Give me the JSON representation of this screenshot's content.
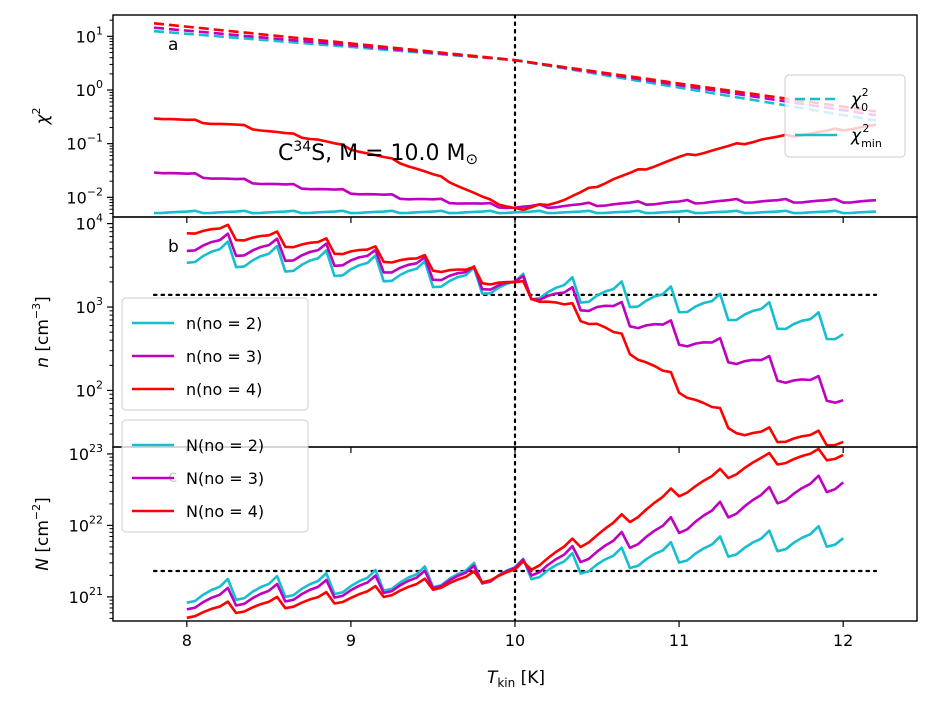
{
  "figure": {
    "xlabel_main": "T",
    "xlabel_sub": "kin",
    "xlabel_unit": " [K]",
    "annotation": {
      "prefix": "C",
      "sup": "34",
      "middle": "S,  M = 10.0 M",
      "sub": "⊙"
    }
  },
  "chart_data": [
    {
      "panel": "a",
      "type": "line",
      "yscale": "log",
      "ylabel": "χ²",
      "ylabel_main": "χ",
      "ylabel_sup": "2",
      "xlim": [
        7.55,
        12.45
      ],
      "ylim": [
        0.0043,
        25
      ],
      "yticks": [
        {
          "value": 0.01,
          "base": "10",
          "exp": "−2"
        },
        {
          "value": 0.1,
          "base": "10",
          "exp": "−1"
        },
        {
          "value": 1,
          "base": "10",
          "exp": "0"
        },
        {
          "value": 10,
          "base": "10",
          "exp": "1"
        }
      ],
      "vline_x": 10,
      "legend": {
        "position": "right",
        "entries": [
          {
            "style": "dashed",
            "color": "#17becf",
            "main": "χ",
            "sub": "0",
            "sup": "2"
          },
          {
            "style": "solid",
            "color": "#17becf",
            "main": "χ",
            "sub": "min",
            "sup": "2"
          }
        ]
      },
      "series": [
        {
          "color": "#17becf",
          "style": "dashed",
          "x": [
            7.8,
            10,
            12.2
          ],
          "values": [
            12.5,
            3.6,
            0.27
          ],
          "zigzag": 0
        },
        {
          "color": "#bf00bf",
          "style": "dashed",
          "x": [
            7.8,
            10,
            12.2
          ],
          "values": [
            14.5,
            3.6,
            0.34
          ],
          "zigzag": 0
        },
        {
          "color": "#ff0000",
          "style": "dashed",
          "x": [
            7.8,
            10,
            12.2
          ],
          "values": [
            17.5,
            3.6,
            0.4
          ],
          "zigzag": 0
        },
        {
          "color": "#17becf",
          "style": "solid",
          "x": [
            7.8,
            12.2
          ],
          "values": [
            0.0053,
            0.0053
          ],
          "zigzag": 0.05
        },
        {
          "color": "#bf00bf",
          "style": "solid",
          "x": [
            7.8,
            8.5,
            9.3,
            10,
            10.6,
            11.3,
            12.2
          ],
          "values": [
            0.031,
            0.018,
            0.01,
            0.0065,
            0.0075,
            0.0085,
            0.0085
          ],
          "zigzag": 0.08
        },
        {
          "color": "#ff0000",
          "style": "solid",
          "x": [
            7.8,
            8.3,
            8.8,
            9.3,
            9.6,
            9.85,
            10.05,
            10.3,
            10.6,
            11,
            11.5,
            12.2
          ],
          "values": [
            0.31,
            0.22,
            0.12,
            0.045,
            0.02,
            0.0085,
            0.0058,
            0.009,
            0.022,
            0.055,
            0.12,
            0.22
          ],
          "zigzag": 0.06
        }
      ]
    },
    {
      "panel": "b",
      "type": "line",
      "yscale": "log",
      "ylabel": "n [cm⁻³]",
      "ylabel_main": "n",
      "ylabel_unit": " [cm",
      "ylabel_sup": "−3",
      "ylabel_close": "]",
      "xlim": [
        7.55,
        12.45
      ],
      "ylim": [
        21,
        12000
      ],
      "yticks": [
        {
          "value": 100,
          "base": "10",
          "exp": "2"
        },
        {
          "value": 1000,
          "base": "10",
          "exp": "3"
        },
        {
          "value": 10000,
          "base": "10",
          "exp": "4"
        }
      ],
      "vline_x": 10,
      "hline": {
        "value": 1400,
        "x": [
          7.8,
          12.2
        ]
      },
      "legend": {
        "position": "middle-left",
        "entries": [
          {
            "color": "#17becf",
            "label": "n(no = 2)"
          },
          {
            "color": "#bf00bf",
            "label": "n(no = 3)"
          },
          {
            "color": "#ff0000",
            "label": "n(no = 4)"
          }
        ]
      },
      "series": [
        {
          "name": "n(no = 2)",
          "color": "#17becf",
          "x": [
            8,
            9,
            9.5,
            10,
            10.5,
            11,
            11.5,
            12
          ],
          "values": [
            4500,
            3000,
            2300,
            1700,
            1450,
            1150,
            800,
            500
          ],
          "zigzag": 0.35
        },
        {
          "name": "n(no = 3)",
          "color": "#bf00bf",
          "x": [
            8,
            9,
            9.5,
            10,
            10.5,
            11,
            11.5,
            12
          ],
          "values": [
            6000,
            3800,
            2700,
            1750,
            1050,
            450,
            200,
            80
          ],
          "zigzag": 0.3
        },
        {
          "name": "n(no = 4)",
          "color": "#ff0000",
          "x": [
            8,
            9,
            9.5,
            10,
            10.5,
            11,
            11.4,
            12
          ],
          "values": [
            9000,
            4800,
            3200,
            1800,
            650,
            110,
            30,
            25
          ],
          "zigzag": 0.2
        }
      ]
    },
    {
      "panel": "c",
      "type": "line",
      "yscale": "log",
      "ylabel": "N [cm⁻²]",
      "ylabel_main": "N",
      "ylabel_unit": " [cm",
      "ylabel_sup": "−2",
      "ylabel_close": "]",
      "xlim": [
        7.55,
        12.45
      ],
      "ylim": [
        4.6e+20,
        1.25e+23
      ],
      "yticks": [
        {
          "value": 1e+21,
          "base": "10",
          "exp": "21"
        },
        {
          "value": 1e+22,
          "base": "10",
          "exp": "22"
        },
        {
          "value": 1e+23,
          "base": "10",
          "exp": "23"
        }
      ],
      "vline_x": 10,
      "hline": {
        "value": 2.3e+21,
        "x": [
          7.8,
          12.2
        ]
      },
      "legend": {
        "position": "top-left",
        "entries": [
          {
            "color": "#17becf",
            "label": "N(no = 2)"
          },
          {
            "color": "#bf00bf",
            "label": "N(no = 3)"
          },
          {
            "color": "#ff0000",
            "label": "N(no = 4)"
          }
        ]
      },
      "series": [
        {
          "name": "N(no = 2)",
          "color": "#17becf",
          "x": [
            8,
            9,
            10,
            10.5,
            11,
            11.5,
            12
          ],
          "values": [
            1.1e+21,
            1.5e+21,
            2.2e+21,
            3e+21,
            4e+21,
            5.5e+21,
            7e+21
          ],
          "zigzag": 0.35
        },
        {
          "name": "N(no = 3)",
          "color": "#bf00bf",
          "x": [
            8,
            9,
            10,
            10.5,
            11,
            11.5,
            12
          ],
          "values": [
            8.5e+20,
            1.3e+21,
            2.2e+21,
            4.5e+21,
            1e+22,
            2.3e+22,
            4.2e+22
          ],
          "zigzag": 0.3
        },
        {
          "name": "N(no = 4)",
          "color": "#ff0000",
          "x": [
            8,
            9,
            10,
            10.5,
            11,
            11.5,
            12
          ],
          "values": [
            6e+20,
            1e+21,
            2.2e+21,
            7.5e+21,
            3e+22,
            8e+22,
            1e+23
          ],
          "zigzag": 0.2
        }
      ]
    }
  ],
  "panel_labels": [
    "a",
    "b",
    "c"
  ],
  "xticks": [
    {
      "value": 8,
      "label": "8"
    },
    {
      "value": 9,
      "label": "9"
    },
    {
      "value": 10,
      "label": "10"
    },
    {
      "value": 11,
      "label": "11"
    },
    {
      "value": 12,
      "label": "12"
    }
  ]
}
